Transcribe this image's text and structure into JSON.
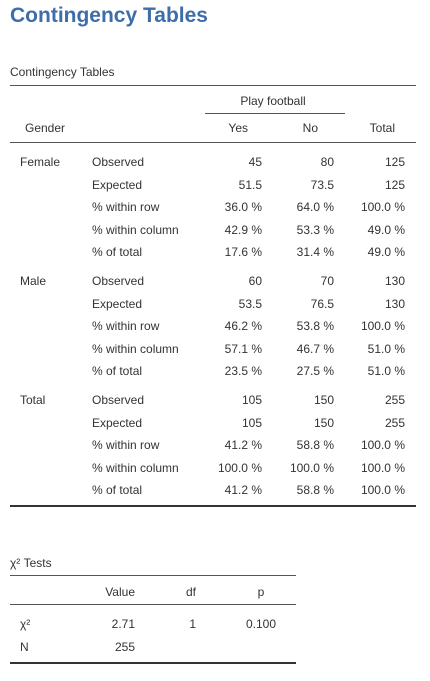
{
  "page_title": "Contingency Tables",
  "contingency": {
    "title": "Contingency Tables",
    "spanning_header": "Play football",
    "columns": {
      "gender": "Gender",
      "yes": "Yes",
      "no": "No",
      "total": "Total"
    },
    "groups": [
      {
        "label": "Female",
        "rows": [
          {
            "stat": "Observed",
            "yes": "45",
            "no": "80",
            "total": "125"
          },
          {
            "stat": "Expected",
            "yes": "51.5",
            "no": "73.5",
            "total": "125"
          },
          {
            "stat": "% within row",
            "yes": "36.0 %",
            "no": "64.0 %",
            "total": "100.0 %"
          },
          {
            "stat": "% within column",
            "yes": "42.9 %",
            "no": "53.3 %",
            "total": "49.0 %"
          },
          {
            "stat": "% of total",
            "yes": "17.6 %",
            "no": "31.4 %",
            "total": "49.0 %"
          }
        ]
      },
      {
        "label": "Male",
        "rows": [
          {
            "stat": "Observed",
            "yes": "60",
            "no": "70",
            "total": "130"
          },
          {
            "stat": "Expected",
            "yes": "53.5",
            "no": "76.5",
            "total": "130"
          },
          {
            "stat": "% within row",
            "yes": "46.2 %",
            "no": "53.8 %",
            "total": "100.0 %"
          },
          {
            "stat": "% within column",
            "yes": "57.1 %",
            "no": "46.7 %",
            "total": "51.0 %"
          },
          {
            "stat": "% of total",
            "yes": "23.5 %",
            "no": "27.5 %",
            "total": "51.0 %"
          }
        ]
      },
      {
        "label": "Total",
        "rows": [
          {
            "stat": "Observed",
            "yes": "105",
            "no": "150",
            "total": "255"
          },
          {
            "stat": "Expected",
            "yes": "105",
            "no": "150",
            "total": "255"
          },
          {
            "stat": "% within row",
            "yes": "41.2 %",
            "no": "58.8 %",
            "total": "100.0 %"
          },
          {
            "stat": "% within column",
            "yes": "100.0 %",
            "no": "100.0 %",
            "total": "100.0 %"
          },
          {
            "stat": "% of total",
            "yes": "41.2 %",
            "no": "58.8 %",
            "total": "100.0 %"
          }
        ]
      }
    ]
  },
  "chi_tests": {
    "title": "χ² Tests",
    "columns": {
      "value": "Value",
      "df": "df",
      "p": "p"
    },
    "rows": [
      {
        "label": "χ²",
        "value": "2.71",
        "df": "1",
        "p": "0.100"
      },
      {
        "label": "N",
        "value": "255",
        "df": "",
        "p": ""
      }
    ]
  }
}
